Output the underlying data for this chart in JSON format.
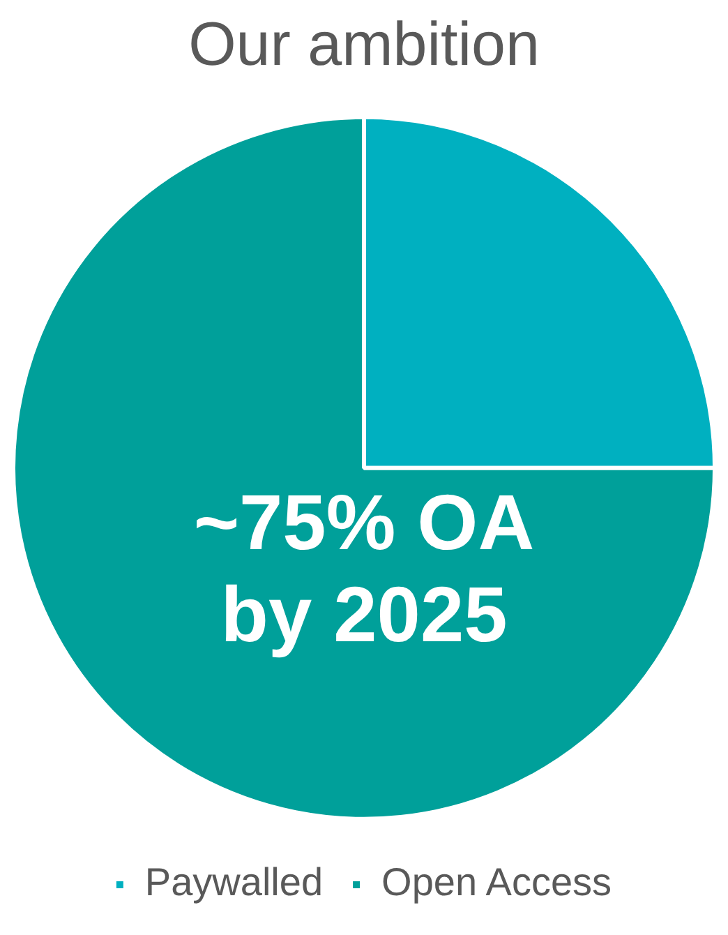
{
  "chart_data": {
    "type": "pie",
    "title": "Our ambition",
    "categories": [
      "Paywalled",
      "Open Access"
    ],
    "values": [
      25,
      75
    ],
    "colors": [
      "#00b0c0",
      "#00a09a"
    ],
    "legend": "bottom",
    "annotations": [
      "~75% OA\nby 2025"
    ]
  }
}
